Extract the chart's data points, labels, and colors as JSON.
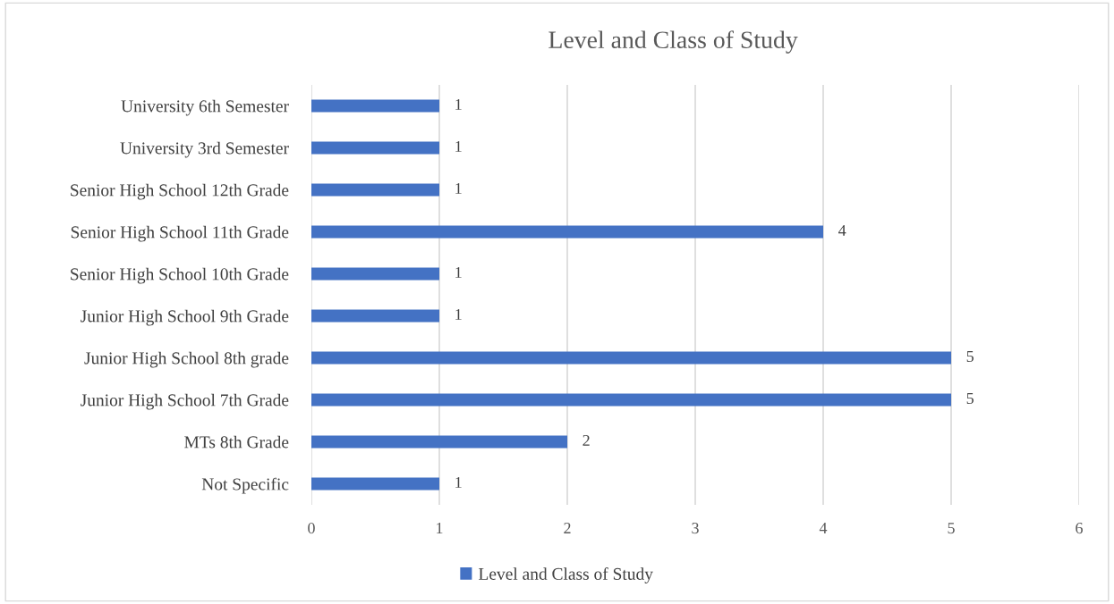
{
  "chart_data": {
    "type": "bar",
    "orientation": "horizontal",
    "title": "Level and Class of Study",
    "categories": [
      "University 6th Semester",
      "University 3rd Semester",
      "Senior High School 12th Grade",
      "Senior High School 11th Grade",
      "Senior High School 10th Grade",
      "Junior High School 9th Grade",
      "Junior High School 8th grade",
      "Junior High School 7th Grade",
      "MTs 8th Grade",
      "Not Specific"
    ],
    "series": [
      {
        "name": "Level and Class of Study",
        "color": "#4472c4",
        "values": [
          1,
          1,
          1,
          4,
          1,
          1,
          5,
          5,
          2,
          1
        ]
      }
    ],
    "xlim": [
      0,
      6
    ],
    "xticks": [
      0,
      1,
      2,
      3,
      4,
      5,
      6
    ],
    "grid": "x",
    "legend": "bottom",
    "data_labels": true
  }
}
